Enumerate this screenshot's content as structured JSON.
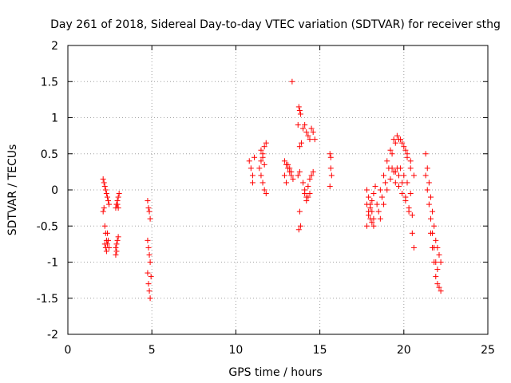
{
  "chart_data": {
    "type": "scatter",
    "title": "Day 261 of 2018, Sidereal Day-to-day VTEC variation (SDTVAR) for receiver sthg",
    "xlabel": "GPS time / hours",
    "ylabel": "SDTVAR / TECUs",
    "xlim": [
      0,
      25
    ],
    "ylim": [
      -2,
      2
    ],
    "xticks": [
      0,
      5,
      10,
      15,
      20,
      25
    ],
    "yticks": [
      -2,
      -1.5,
      -1,
      -0.5,
      0,
      0.5,
      1,
      1.5,
      2
    ],
    "xtick_labels": [
      "0",
      "5",
      "10",
      "15",
      "20",
      "25"
    ],
    "ytick_labels": [
      "-2",
      "-1.5",
      "-1",
      "-0.5",
      "0",
      "0.5",
      "1",
      "1.5",
      "2"
    ],
    "grid": true,
    "marker": "+",
    "color": "#ff0000",
    "series": [
      {
        "name": "SDTVAR",
        "x": [
          2.1,
          2.15,
          2.2,
          2.25,
          2.3,
          2.35,
          2.4,
          2.45,
          2.1,
          2.15,
          2.2,
          2.25,
          2.3,
          2.35,
          2.2,
          2.25,
          2.3,
          2.35,
          2.4,
          2.45,
          2.85,
          2.9,
          2.95,
          3.0,
          3.05,
          2.85,
          2.9,
          2.95,
          3.0,
          2.85,
          2.9,
          2.95,
          3.0,
          4.75,
          4.8,
          4.85,
          4.9,
          4.75,
          4.8,
          4.85,
          4.9,
          4.75,
          4.8,
          4.85,
          4.9,
          4.95,
          10.8,
          10.9,
          11.0,
          11.0,
          11.1,
          11.4,
          11.5,
          11.6,
          11.7,
          11.8,
          11.5,
          11.6,
          11.7,
          11.8,
          11.5,
          11.6,
          11.7,
          12.9,
          13.0,
          13.1,
          13.2,
          13.3,
          13.4,
          12.9,
          13.0,
          13.1,
          13.2,
          13.3,
          13.35,
          13.75,
          13.8,
          13.85,
          13.7,
          13.8,
          13.9,
          13.7,
          13.8,
          13.8,
          13.75,
          13.85,
          14.0,
          14.1,
          14.2,
          14.3,
          14.4,
          14.5,
          14.6,
          14.7,
          14.0,
          14.1,
          14.2,
          14.3,
          14.4,
          14.5,
          14.6,
          14.1,
          14.2,
          14.3,
          14.4,
          15.6,
          15.65,
          15.7,
          15.6,
          15.65,
          17.8,
          17.9,
          18.0,
          18.1,
          18.2,
          17.8,
          17.9,
          18.0,
          18.1,
          18.2,
          18.3,
          17.8,
          17.9,
          18.0,
          18.1,
          18.2,
          18.5,
          18.7,
          18.9,
          19.1,
          19.3,
          19.5,
          19.7,
          19.9,
          20.1,
          20.2,
          20.4,
          18.4,
          18.6,
          18.8,
          19.0,
          19.2,
          19.4,
          19.6,
          19.8,
          20.0,
          20.2,
          20.4,
          20.6,
          18.6,
          18.8,
          19.0,
          19.2,
          19.4,
          19.6,
          19.8,
          20.0,
          20.2,
          20.4,
          19.3,
          19.5,
          19.7,
          19.9,
          20.1,
          20.3,
          20.5,
          20.6,
          19.5,
          19.7,
          19.9,
          20.1,
          20.3,
          20.5,
          21.3,
          21.4,
          21.5,
          21.6,
          21.7,
          21.8,
          21.9,
          22.0,
          22.1,
          22.2,
          21.3,
          21.4,
          21.5,
          21.6,
          21.7,
          21.8,
          21.9,
          22.0,
          21.6,
          21.7,
          21.8,
          21.9,
          22.0,
          22.1,
          22.2
        ],
        "y": [
          0.15,
          0.1,
          0.05,
          0.0,
          -0.05,
          -0.1,
          -0.15,
          -0.2,
          -0.3,
          -0.25,
          -0.5,
          -0.6,
          -0.7,
          -0.75,
          -0.75,
          -0.8,
          -0.85,
          -0.6,
          -0.7,
          -0.8,
          -0.25,
          -0.2,
          -0.15,
          -0.1,
          -0.05,
          -0.8,
          -0.75,
          -0.7,
          -0.65,
          -0.9,
          -0.85,
          -0.2,
          -0.25,
          -0.15,
          -0.25,
          -0.3,
          -0.4,
          -0.7,
          -0.8,
          -0.9,
          -1.0,
          -1.15,
          -1.3,
          -1.4,
          -1.5,
          -1.2,
          0.4,
          0.3,
          0.2,
          0.1,
          0.45,
          0.3,
          0.4,
          0.5,
          0.6,
          0.65,
          0.2,
          0.1,
          0.0,
          -0.05,
          0.55,
          0.45,
          0.35,
          0.4,
          0.35,
          0.3,
          0.25,
          0.2,
          0.15,
          0.2,
          0.1,
          0.35,
          0.3,
          0.25,
          1.5,
          1.15,
          1.1,
          1.05,
          0.9,
          0.6,
          0.65,
          0.2,
          0.25,
          -0.3,
          -0.55,
          -0.5,
          0.85,
          0.9,
          0.8,
          0.75,
          0.7,
          0.85,
          0.8,
          0.7,
          0.1,
          0.0,
          -0.1,
          0.05,
          0.15,
          0.2,
          0.25,
          -0.05,
          -0.15,
          -0.1,
          -0.05,
          0.5,
          0.3,
          0.2,
          0.05,
          0.45,
          0.0,
          -0.1,
          -0.2,
          -0.3,
          -0.4,
          -0.5,
          -0.35,
          -0.25,
          -0.15,
          -0.05,
          0.05,
          -0.2,
          -0.3,
          -0.4,
          -0.45,
          -0.5,
          -0.3,
          -0.1,
          0.1,
          0.3,
          0.5,
          0.65,
          0.7,
          0.65,
          0.55,
          0.45,
          0.3,
          -0.2,
          0.0,
          0.2,
          0.4,
          0.55,
          0.7,
          0.75,
          0.7,
          0.6,
          0.5,
          0.4,
          0.2,
          -0.4,
          -0.2,
          0.0,
          0.15,
          0.25,
          0.3,
          0.3,
          0.2,
          0.1,
          -0.05,
          0.3,
          0.25,
          0.2,
          0.1,
          -0.1,
          -0.3,
          -0.6,
          -0.8,
          0.1,
          0.05,
          -0.05,
          -0.15,
          -0.25,
          -0.35,
          0.5,
          0.3,
          0.1,
          -0.1,
          -0.3,
          -0.5,
          -0.7,
          -0.8,
          -0.9,
          -1.0,
          0.2,
          0.0,
          -0.2,
          -0.4,
          -0.6,
          -0.8,
          -1.0,
          -1.1,
          -0.6,
          -0.8,
          -1.0,
          -1.2,
          -1.3,
          -1.35,
          -1.4
        ]
      }
    ]
  }
}
